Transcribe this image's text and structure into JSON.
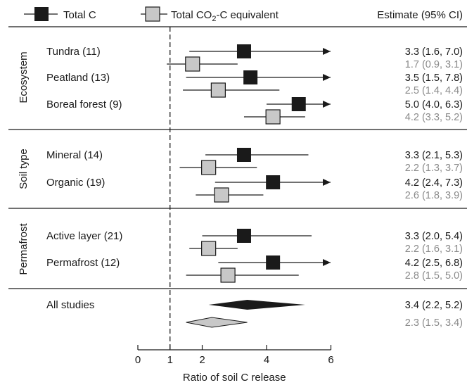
{
  "chart_data": {
    "type": "forest",
    "xlabel": "Ratio of soil C release",
    "ticks": [
      0,
      1,
      2,
      4,
      6
    ],
    "tick_labels": [
      "0",
      "1",
      "2",
      "4",
      "6"
    ],
    "xlim": [
      0,
      6
    ],
    "reference_line": 1,
    "estimate_header": "Estimate (95% CI)",
    "legend": {
      "total_c": "Total C",
      "co2_prefix": "Total CO",
      "co2_sub": "2",
      "co2_suffix": "-C equivalent"
    },
    "colors": {
      "total_c": "#1a1a1a",
      "co2_fill": "#c8c8c8",
      "co2_text": "#8a8a8a"
    },
    "groups": [
      {
        "name": "Ecosystem",
        "rows": [
          {
            "label": "Tundra (11)",
            "c": {
              "est": 3.3,
              "lo": 1.6,
              "hi": 7.0,
              "arrow": true,
              "text": "3.3 (1.6, 7.0)"
            },
            "co2": {
              "est": 1.7,
              "lo": 0.9,
              "hi": 3.1,
              "text": "1.7 (0.9, 3.1)"
            }
          },
          {
            "label": "Peatland (13)",
            "c": {
              "est": 3.5,
              "lo": 1.5,
              "hi": 7.8,
              "arrow": true,
              "text": "3.5 (1.5, 7.8)"
            },
            "co2": {
              "est": 2.5,
              "lo": 1.4,
              "hi": 4.4,
              "text": "2.5 (1.4, 4.4)"
            }
          },
          {
            "label": "Boreal forest (9)",
            "c": {
              "est": 5.0,
              "lo": 4.0,
              "hi": 6.3,
              "arrow": true,
              "text": "5.0 (4.0, 6.3)"
            },
            "co2": {
              "est": 4.2,
              "lo": 3.3,
              "hi": 5.2,
              "text": "4.2 (3.3, 5.2)"
            }
          }
        ]
      },
      {
        "name": "Soil type",
        "rows": [
          {
            "label": "Mineral (14)",
            "c": {
              "est": 3.3,
              "lo": 2.1,
              "hi": 5.3,
              "arrow": false,
              "text": "3.3 (2.1, 5.3)"
            },
            "co2": {
              "est": 2.2,
              "lo": 1.3,
              "hi": 3.7,
              "text": "2.2 (1.3, 3.7)"
            }
          },
          {
            "label": "Organic (19)",
            "c": {
              "est": 4.2,
              "lo": 2.4,
              "hi": 7.3,
              "arrow": true,
              "text": "4.2 (2.4, 7.3)"
            },
            "co2": {
              "est": 2.6,
              "lo": 1.8,
              "hi": 3.9,
              "text": "2.6 (1.8, 3.9)"
            }
          }
        ]
      },
      {
        "name": "Permafrost",
        "rows": [
          {
            "label": "Active layer (21)",
            "c": {
              "est": 3.3,
              "lo": 2.0,
              "hi": 5.4,
              "arrow": false,
              "text": "3.3 (2.0, 5.4)"
            },
            "co2": {
              "est": 2.2,
              "lo": 1.6,
              "hi": 3.1,
              "text": "2.2 (1.6, 3.1)"
            }
          },
          {
            "label": "Permafrost (12)",
            "c": {
              "est": 4.2,
              "lo": 2.5,
              "hi": 6.8,
              "arrow": true,
              "text": "4.2 (2.5, 6.8)"
            },
            "co2": {
              "est": 2.8,
              "lo": 1.5,
              "hi": 5.0,
              "text": "2.8 (1.5, 5.0)"
            }
          }
        ]
      }
    ],
    "overall": {
      "label": "All studies",
      "c": {
        "est": 3.4,
        "lo": 2.2,
        "hi": 5.2,
        "text": "3.4 (2.2, 5.2)"
      },
      "co2": {
        "est": 2.3,
        "lo": 1.5,
        "hi": 3.4,
        "text": "2.3 (1.5, 3.4)"
      }
    }
  }
}
